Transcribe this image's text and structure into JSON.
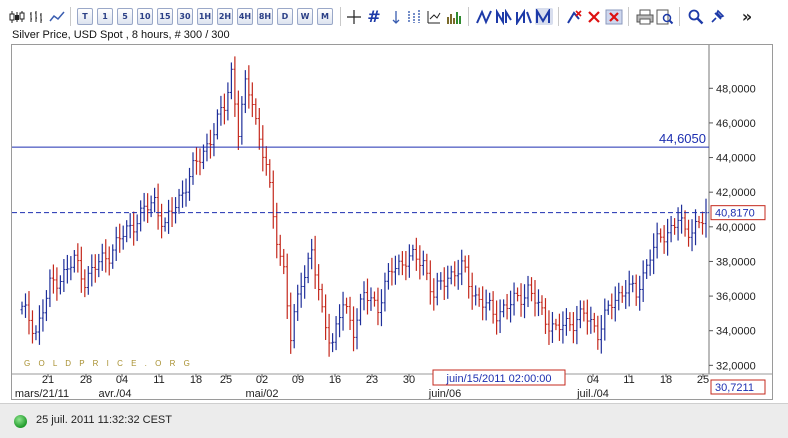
{
  "toolbar": {
    "timeframes": [
      "T",
      "1",
      "5",
      "10",
      "15",
      "30",
      "1H",
      "2H",
      "4H",
      "8H",
      "D",
      "W",
      "M"
    ],
    "icons": [
      "candlestick-chart-icon",
      "bar-chart-icon",
      "line-chart-icon",
      "crosshair-icon",
      "grid-icon",
      "indicator-icon",
      "volume-icon",
      "trendline-icon",
      "channel-icon",
      "fan-icon",
      "fibonacci-icon",
      "delete-line-icon",
      "delete-icon",
      "delete-all-icon",
      "print-icon",
      "save-icon",
      "zoom-icon",
      "pin-icon",
      "more-icon"
    ],
    "more_label": "»"
  },
  "chart": {
    "title": "Silver Price, USD Spot , 8 hours, # 300 / 300",
    "watermark": "G O L D P R I C E . O R G",
    "crosshair_date": "juin/15/2011 02:00:00",
    "hline_value_label": "44,6050",
    "last_price_label": "40,8170",
    "cursor_price_label": "30,7211"
  },
  "chart_data": {
    "type": "bar",
    "title": "Silver Price, USD Spot , 8 hours, # 300 / 300",
    "ylim": [
      31.5,
      50.5
    ],
    "y_ticks": [
      "48,0000",
      "46,0000",
      "44,0000",
      "42,0000",
      "40,0000",
      "38,0000",
      "36,0000",
      "34,0000",
      "32,0000"
    ],
    "y_tick_values": [
      48,
      46,
      44,
      42,
      40,
      38,
      36,
      34,
      32
    ],
    "x_ticks": [
      "21",
      "28",
      "04",
      "11",
      "18",
      "25",
      "02",
      "09",
      "16",
      "23",
      "30",
      "06",
      "13",
      "20",
      "27",
      "04",
      "11",
      "18",
      "25"
    ],
    "x_month_labels": [
      "mars/21/11",
      "avr./04",
      "mai/02",
      "juin/06",
      "juil./04"
    ],
    "horizontal_line": 44.605,
    "last_price": 40.817,
    "keypoints": [
      [
        0,
        35.2
      ],
      [
        4,
        34.0
      ],
      [
        8,
        36.5
      ],
      [
        15,
        38.0
      ],
      [
        18,
        37.0
      ],
      [
        25,
        38.5
      ],
      [
        33,
        40.5
      ],
      [
        38,
        41.5
      ],
      [
        41,
        40.0
      ],
      [
        47,
        42.5
      ],
      [
        55,
        45.5
      ],
      [
        58,
        47.0
      ],
      [
        60,
        49.0
      ],
      [
        62,
        45.5
      ],
      [
        64,
        48.0
      ],
      [
        66,
        47.5
      ],
      [
        68,
        45.0
      ],
      [
        70,
        43.5
      ],
      [
        72,
        40.5
      ],
      [
        75,
        37.5
      ],
      [
        77,
        33.5
      ],
      [
        80,
        37.0
      ],
      [
        83,
        38.5
      ],
      [
        86,
        35.0
      ],
      [
        89,
        33.3
      ],
      [
        92,
        35.5
      ],
      [
        95,
        34.2
      ],
      [
        98,
        36.0
      ],
      [
        102,
        35.5
      ],
      [
        106,
        37.5
      ],
      [
        110,
        38.2
      ],
      [
        115,
        38.0
      ],
      [
        118,
        36.0
      ],
      [
        122,
        37.2
      ],
      [
        126,
        37.6
      ],
      [
        130,
        36.0
      ],
      [
        135,
        35.0
      ],
      [
        140,
        35.5
      ],
      [
        145,
        36.4
      ],
      [
        149,
        35.0
      ],
      [
        153,
        34.0
      ],
      [
        157,
        34.5
      ],
      [
        161,
        34.9
      ],
      [
        165,
        34.0
      ],
      [
        169,
        35.5
      ],
      [
        173,
        36.6
      ],
      [
        176,
        36.0
      ],
      [
        180,
        38.5
      ],
      [
        184,
        39.5
      ],
      [
        188,
        40.5
      ],
      [
        190,
        39.5
      ],
      [
        193,
        40.2
      ],
      [
        196,
        40.5
      ]
    ]
  },
  "status": {
    "timestamp": "25 juil. 2011 11:32:32 CEST"
  }
}
